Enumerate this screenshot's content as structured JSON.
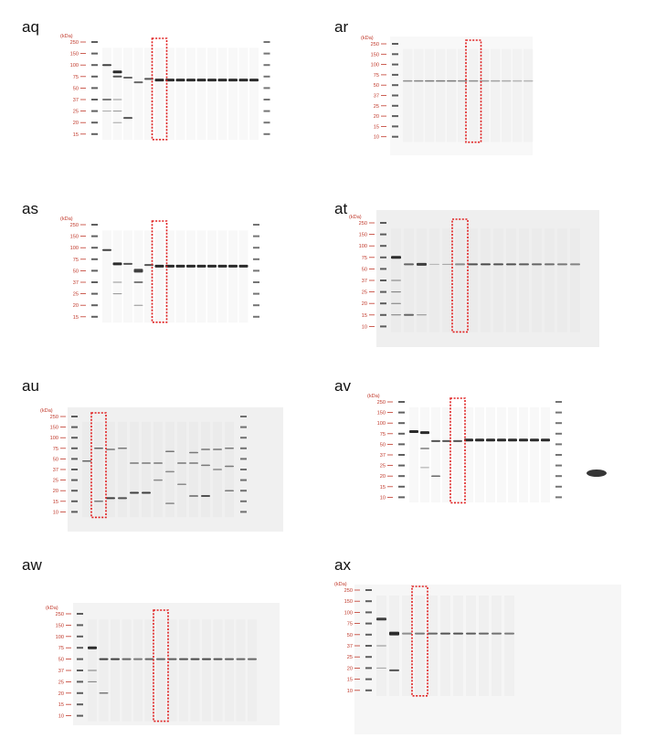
{
  "colors": {
    "marker_label": "#c0392b",
    "highlight_box": "#e02020",
    "band": "#2b2b2b"
  },
  "unit_label": "(kDa)",
  "panels": [
    {
      "id": "aq",
      "label": "aq",
      "markers": [
        "250",
        "150",
        "100",
        "75",
        "50",
        "37",
        "25",
        "20",
        "15"
      ]
    },
    {
      "id": "ar",
      "label": "ar",
      "markers": [
        "250",
        "150",
        "100",
        "75",
        "50",
        "37",
        "25",
        "20",
        "15",
        "10"
      ]
    },
    {
      "id": "as",
      "label": "as",
      "markers": [
        "250",
        "150",
        "100",
        "75",
        "50",
        "37",
        "25",
        "20",
        "15"
      ]
    },
    {
      "id": "at",
      "label": "at",
      "markers": [
        "250",
        "150",
        "100",
        "75",
        "50",
        "37",
        "25",
        "20",
        "15",
        "10"
      ]
    },
    {
      "id": "au",
      "label": "au",
      "markers": [
        "250",
        "150",
        "100",
        "75",
        "50",
        "37",
        "25",
        "20",
        "15",
        "10"
      ]
    },
    {
      "id": "av",
      "label": "av",
      "markers": [
        "250",
        "150",
        "100",
        "75",
        "50",
        "37",
        "25",
        "20",
        "15",
        "10"
      ]
    },
    {
      "id": "aw",
      "label": "aw",
      "markers": [
        "250",
        "150",
        "100",
        "75",
        "50",
        "37",
        "25",
        "20",
        "15",
        "10"
      ]
    },
    {
      "id": "ax",
      "label": "ax",
      "markers": [
        "250",
        "150",
        "100",
        "75",
        "50",
        "37",
        "25",
        "20",
        "15",
        "10"
      ]
    }
  ]
}
